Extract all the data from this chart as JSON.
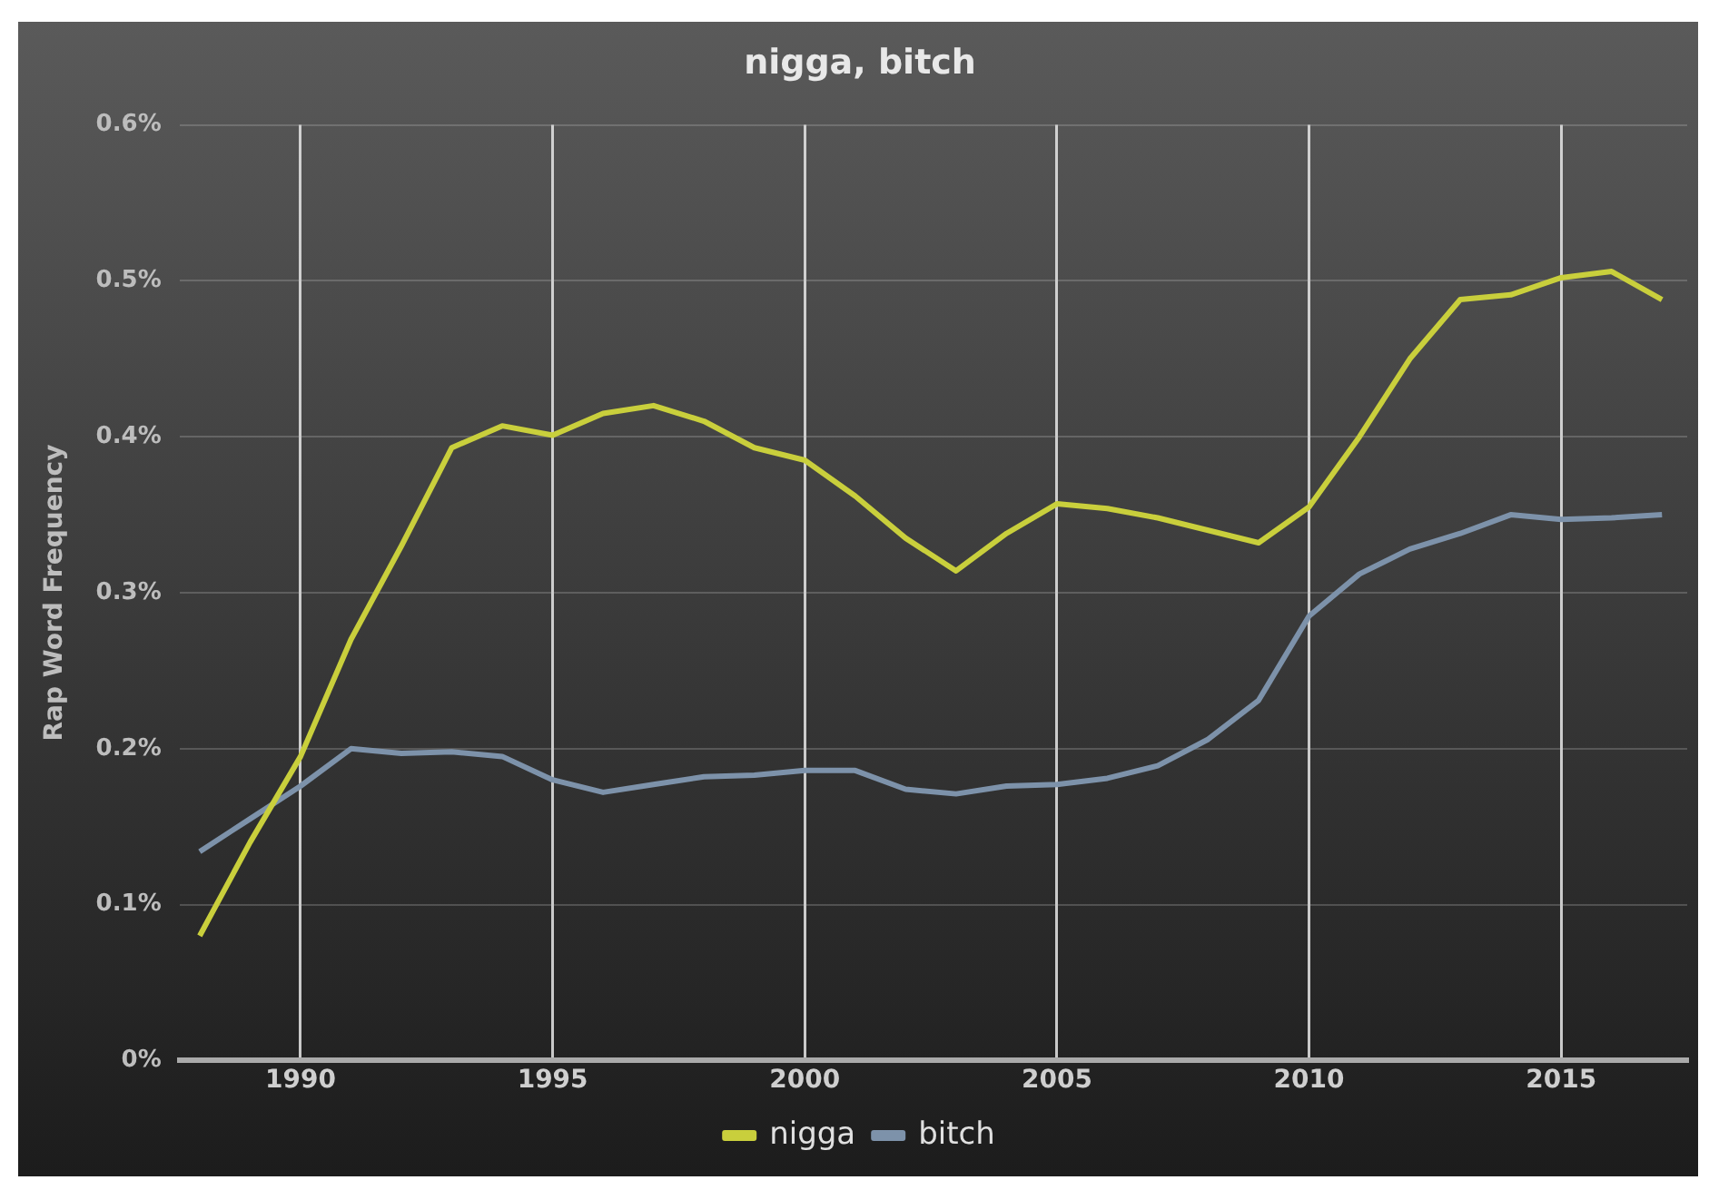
{
  "chart_data": {
    "type": "line",
    "title": "nigga, bitch",
    "ylabel": "Rap Word Frequency",
    "x": [
      1988,
      1989,
      1990,
      1991,
      1992,
      1993,
      1994,
      1995,
      1996,
      1997,
      1998,
      1999,
      2000,
      2001,
      2002,
      2003,
      2004,
      2005,
      2006,
      2007,
      2008,
      2009,
      2010,
      2011,
      2012,
      2013,
      2014,
      2015,
      2016,
      2017
    ],
    "series": [
      {
        "name": "nigga",
        "color": "#c9cf3c",
        "values": [
          0.08,
          0.14,
          0.195,
          0.27,
          0.33,
          0.393,
          0.407,
          0.401,
          0.415,
          0.42,
          0.41,
          0.393,
          0.385,
          0.362,
          0.335,
          0.314,
          0.338,
          0.357,
          0.354,
          0.348,
          0.34,
          0.332,
          0.355,
          0.4,
          0.45,
          0.488,
          0.491,
          0.502,
          0.506,
          0.488
        ]
      },
      {
        "name": "bitch",
        "color": "#7d92aa",
        "values": [
          0.134,
          0.155,
          0.176,
          0.2,
          0.197,
          0.198,
          0.195,
          0.18,
          0.172,
          0.177,
          0.182,
          0.183,
          0.186,
          0.186,
          0.174,
          0.171,
          0.176,
          0.177,
          0.181,
          0.189,
          0.206,
          0.231,
          0.285,
          0.312,
          0.328,
          0.338,
          0.35,
          0.347,
          0.348,
          0.35
        ]
      }
    ],
    "xlim": [
      1987.6,
      2017.5
    ],
    "xticks": [
      1990,
      1995,
      2000,
      2005,
      2010,
      2015
    ],
    "ylim": [
      0,
      0.6
    ],
    "yticks": [
      {
        "value": 0,
        "label": "0%"
      },
      {
        "value": 0.1,
        "label": "0.1%"
      },
      {
        "value": 0.2,
        "label": "0.2%"
      },
      {
        "value": 0.3,
        "label": "0.3%"
      },
      {
        "value": 0.4,
        "label": "0.4%"
      },
      {
        "value": 0.5,
        "label": "0.5%"
      },
      {
        "value": 0.6,
        "label": "0.6%"
      }
    ],
    "grid": true,
    "legend": "bottom",
    "marker": "none",
    "line_style": "solid"
  }
}
